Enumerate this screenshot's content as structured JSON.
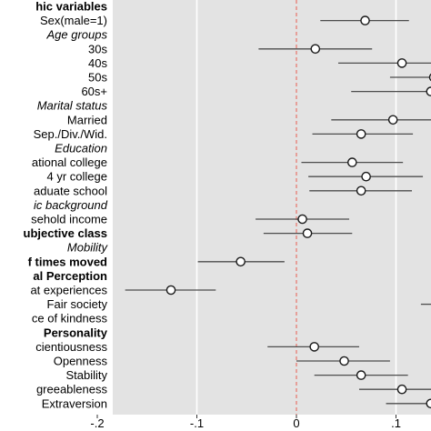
{
  "chart_data": {
    "type": "scatter",
    "subtype": "coefficient-plot",
    "xlim": [
      -0.2,
      0.13
    ],
    "xticks": [
      -0.2,
      -0.1,
      0,
      0.1
    ],
    "xtick_labels": [
      "-.2",
      "-.1",
      "0",
      ".1"
    ],
    "reference_line": 0,
    "grid": true,
    "colors": {
      "panel": "#e3e3e3",
      "grid": "#ffffff",
      "reference": "#e8685d",
      "interval": "#4d4d4d",
      "point_fill": "#ffffff",
      "point_stroke": "#1a1a1a"
    },
    "rows": [
      {
        "label": "hic variables",
        "style": "bold",
        "kind": "header"
      },
      {
        "label": "Sex(male=1)",
        "style": "normal",
        "kind": "item",
        "est": 0.069,
        "lo": 0.024,
        "hi": 0.113
      },
      {
        "label": "Age groups",
        "style": "italic",
        "kind": "header"
      },
      {
        "label": "30s",
        "style": "normal",
        "kind": "item",
        "est": 0.019,
        "lo": -0.038,
        "hi": 0.076
      },
      {
        "label": "40s",
        "style": "normal",
        "kind": "item",
        "est": 0.106,
        "lo": 0.042,
        "hi": 0.152
      },
      {
        "label": "50s",
        "style": "normal",
        "kind": "item",
        "est": 0.138,
        "lo": 0.094,
        "hi": 0.182
      },
      {
        "label": "60s+",
        "style": "normal",
        "kind": "item",
        "est": 0.135,
        "lo": 0.055,
        "hi": 0.205
      },
      {
        "label": "Marital status",
        "style": "italic",
        "kind": "header"
      },
      {
        "label": "Married",
        "style": "normal",
        "kind": "item",
        "est": 0.097,
        "lo": 0.035,
        "hi": 0.158
      },
      {
        "label": "Sep./Div./Wid.",
        "style": "normal",
        "kind": "item",
        "est": 0.065,
        "lo": 0.016,
        "hi": 0.117
      },
      {
        "label": "Education",
        "style": "italic",
        "kind": "header"
      },
      {
        "label": "ational college",
        "style": "normal",
        "kind": "item",
        "est": 0.056,
        "lo": 0.005,
        "hi": 0.107
      },
      {
        "label": "4 yr college",
        "style": "normal",
        "kind": "item",
        "est": 0.07,
        "lo": 0.012,
        "hi": 0.127
      },
      {
        "label": "aduate school",
        "style": "normal",
        "kind": "item",
        "est": 0.065,
        "lo": 0.013,
        "hi": 0.116
      },
      {
        "label": "ic background",
        "style": "italic",
        "kind": "header"
      },
      {
        "label": "sehold income",
        "style": "normal",
        "kind": "item",
        "est": 0.006,
        "lo": -0.041,
        "hi": 0.053
      },
      {
        "label": "ubjective class",
        "style": "bold",
        "kind": "item",
        "est": 0.011,
        "lo": -0.033,
        "hi": 0.056
      },
      {
        "label": "Mobility",
        "style": "italic",
        "kind": "header"
      },
      {
        "label": "f times moved",
        "style": "bold",
        "kind": "item",
        "est": -0.056,
        "lo": -0.099,
        "hi": -0.012
      },
      {
        "label": "al Perception",
        "style": "bold",
        "kind": "header"
      },
      {
        "label": "at experiences",
        "style": "normal",
        "kind": "item",
        "est": -0.126,
        "lo": -0.172,
        "hi": -0.081
      },
      {
        "label": "Fair society",
        "style": "normal",
        "kind": "item",
        "est": null,
        "lo": 0.125,
        "hi": 0.2
      },
      {
        "label": "ce of kindness",
        "style": "normal",
        "kind": "item",
        "est": null,
        "lo": null,
        "hi": null
      },
      {
        "label": "Personality",
        "style": "bold",
        "kind": "header"
      },
      {
        "label": "cientiousness",
        "style": "normal",
        "kind": "item",
        "est": 0.018,
        "lo": -0.029,
        "hi": 0.063
      },
      {
        "label": "Openness",
        "style": "normal",
        "kind": "item",
        "est": 0.048,
        "lo": 0.0,
        "hi": 0.094
      },
      {
        "label": "Stability",
        "style": "normal",
        "kind": "item",
        "est": 0.065,
        "lo": 0.018,
        "hi": 0.112
      },
      {
        "label": "greeableness",
        "style": "normal",
        "kind": "item",
        "est": 0.106,
        "lo": 0.063,
        "hi": 0.152
      },
      {
        "label": "Extraversion",
        "style": "normal",
        "kind": "item",
        "est": 0.135,
        "lo": 0.09,
        "hi": 0.18
      }
    ]
  }
}
